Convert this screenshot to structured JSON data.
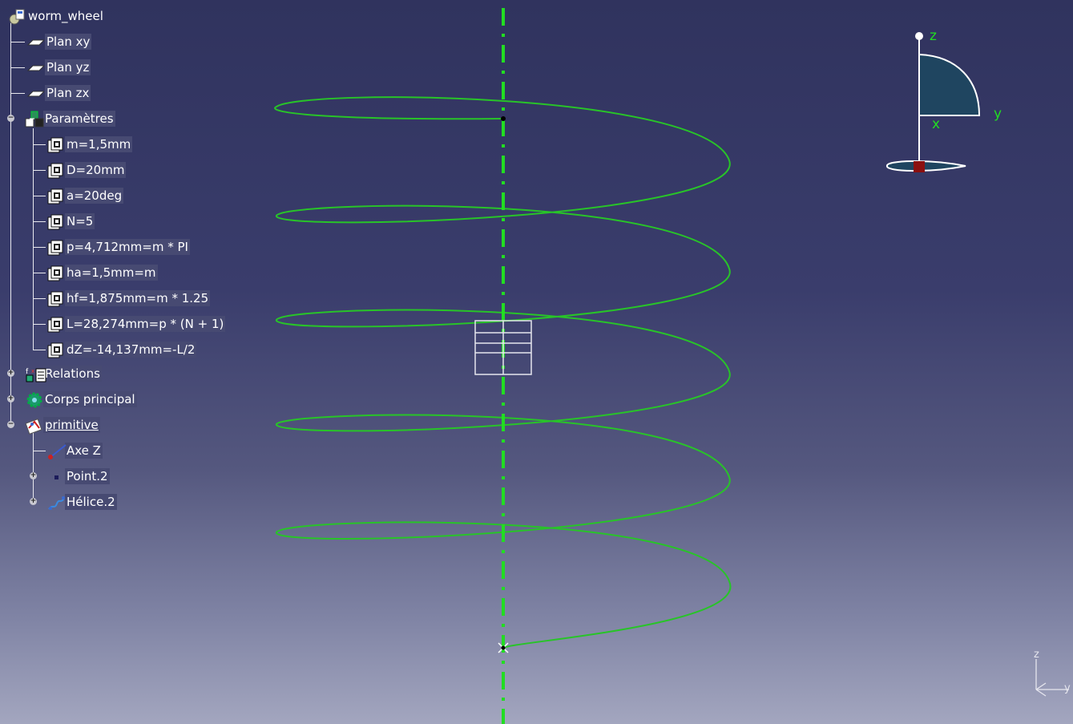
{
  "tree": {
    "root": "worm_wheel",
    "planes": [
      "Plan xy",
      "Plan yz",
      "Plan zx"
    ],
    "parameters": {
      "label": "Paramètres",
      "items": [
        "m=1,5mm",
        "D=20mm",
        "a=20deg",
        "N=5",
        "p=4,712mm=m * PI",
        "ha=1,5mm=m",
        "hf=1,875mm=m * 1.25",
        "L=28,274mm=p * (N + 1)",
        "dZ=-14,137mm=-L/2"
      ]
    },
    "relations": "Relations",
    "main_body": "Corps principal",
    "primitive": {
      "label": "primitive",
      "items": [
        "Axe Z",
        "Point.2",
        "Hélice.2"
      ]
    }
  },
  "compass": {
    "z": "z",
    "y": "y",
    "x": "x"
  },
  "axis_triad": {
    "z": "z",
    "y": "y"
  },
  "colors": {
    "helix": "#28c428",
    "axis": "#22dd22",
    "compass_fill": "#1f4560",
    "compass_origin": "#8b1010"
  },
  "icons": {
    "root": "part-icon",
    "plane": "plane-icon",
    "parameter": "parameter-icon",
    "parameters": "parameters-set-icon",
    "relations": "relations-icon",
    "main_body": "body-gear-icon",
    "primitive": "geometrical-set-icon",
    "axis": "line-icon",
    "point": "point-icon",
    "helix": "helix-icon"
  }
}
